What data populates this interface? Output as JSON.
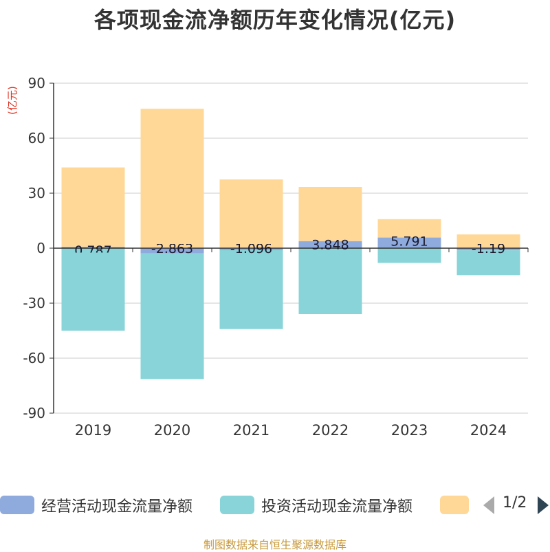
{
  "chart_data": {
    "type": "bar",
    "stacked": true,
    "title": "各项现金流净额历年变化情况(亿元)",
    "ylabel": "(亿元)",
    "categories": [
      "2019",
      "2020",
      "2021",
      "2022",
      "2023",
      "2024"
    ],
    "ylim": [
      -90,
      90
    ],
    "yticks": [
      90,
      60,
      30,
      0,
      -30,
      -60,
      -90
    ],
    "grid": true,
    "series": [
      {
        "name": "经营活动现金流量净额",
        "color": "#8faadc",
        "values": [
          0.787,
          -2.863,
          -1.096,
          3.848,
          5.791,
          -1.19
        ],
        "labels": [
          "0.787",
          "-2.863",
          "-1.096",
          "3.848",
          "5.791",
          "-1.19"
        ]
      },
      {
        "name": "投资活动现金流量净额",
        "color": "#88d4d8",
        "values": [
          -45,
          -68.5,
          -43,
          -36,
          -8,
          -13.5
        ]
      },
      {
        "name": "",
        "color": "#ffd898",
        "values": [
          43.2,
          76,
          37.5,
          29.5,
          10,
          7.5
        ]
      }
    ],
    "legend": {
      "position": "bottom",
      "page": "1/2"
    }
  },
  "source_note": "制图数据来自恒生聚源数据库"
}
